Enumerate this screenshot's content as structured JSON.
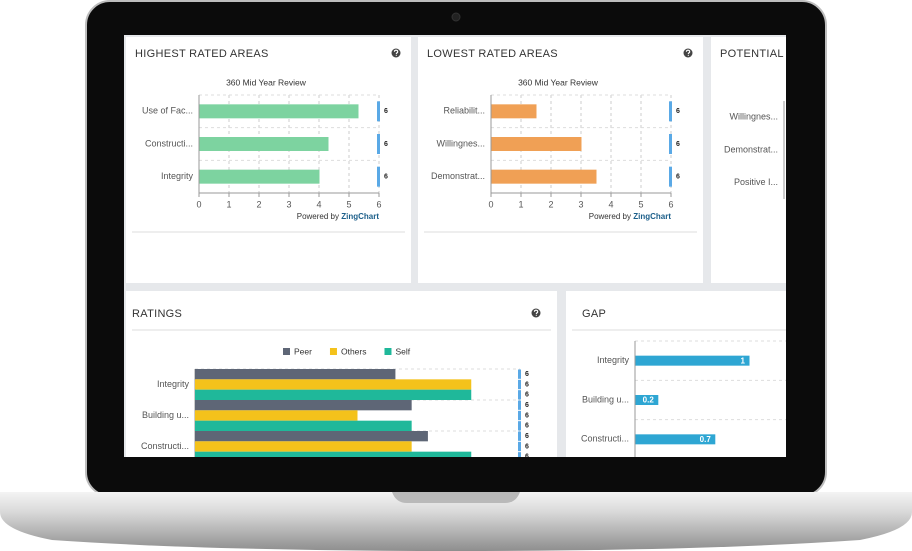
{
  "panels": [
    {
      "title": "HIGHEST RATED AREAS",
      "chart": {
        "type": "bar",
        "title": "360 Mid Year Review",
        "categories": [
          "Use of Fac...",
          "Constructi...",
          "Integrity"
        ],
        "values": [
          5.3,
          4.3,
          4
        ],
        "color": "#7dd3a0",
        "targets": [
          6,
          6,
          6
        ],
        "target_color": "#5aa9e6",
        "xlim": [
          0,
          6
        ],
        "xticks": [
          0,
          1,
          2,
          3,
          4,
          5,
          6
        ],
        "grid": true,
        "footer": "Powered by",
        "brand": "ZingChart"
      }
    },
    {
      "title": "LOWEST RATED AREAS",
      "chart": {
        "type": "bar",
        "title": "360 Mid Year Review",
        "categories": [
          "Reliabilit...",
          "Willingnes...",
          "Demonstrat..."
        ],
        "values": [
          1.5,
          3,
          3.5
        ],
        "color": "#f0a055",
        "targets": [
          6,
          6,
          6
        ],
        "target_color": "#5aa9e6",
        "xlim": [
          0,
          6
        ],
        "xticks": [
          0,
          1,
          2,
          3,
          4,
          5,
          6
        ],
        "grid": true,
        "footer": "Powered by",
        "brand": "ZingChart"
      }
    },
    {
      "title": "POTENTIAL BL",
      "chart": {
        "type": "bar",
        "categories": [
          "Willingnes...",
          "Demonstrat...",
          "Positive I..."
        ]
      }
    },
    {
      "title": "RATINGS",
      "chart": {
        "type": "grouped_bar",
        "categories": [
          "Integrity",
          "Building u...",
          "Constructi..."
        ],
        "series": [
          {
            "name": "Peer",
            "color": "#5e6676",
            "values": [
              3.7,
              4,
              4.3
            ]
          },
          {
            "name": "Others",
            "color": "#f4c21b",
            "values": [
              5.1,
              3,
              4
            ]
          },
          {
            "name": "Self",
            "color": "#1fb89a",
            "values": [
              5.1,
              4,
              5.1
            ]
          }
        ],
        "targets": [
          6,
          6,
          6,
          6,
          6,
          6,
          6,
          6,
          6
        ],
        "target_color": "#5aa9e6",
        "xlim": [
          0,
          6
        ],
        "grid": true
      }
    },
    {
      "title": "GAP",
      "chart": {
        "type": "bar",
        "categories": [
          "Integrity",
          "Building u...",
          "Constructi..."
        ],
        "values": [
          1,
          0.2,
          0.7
        ],
        "color": "#2ea6d3",
        "xlim": [
          0,
          1.5
        ],
        "grid": true,
        "data_labels": true
      }
    }
  ]
}
